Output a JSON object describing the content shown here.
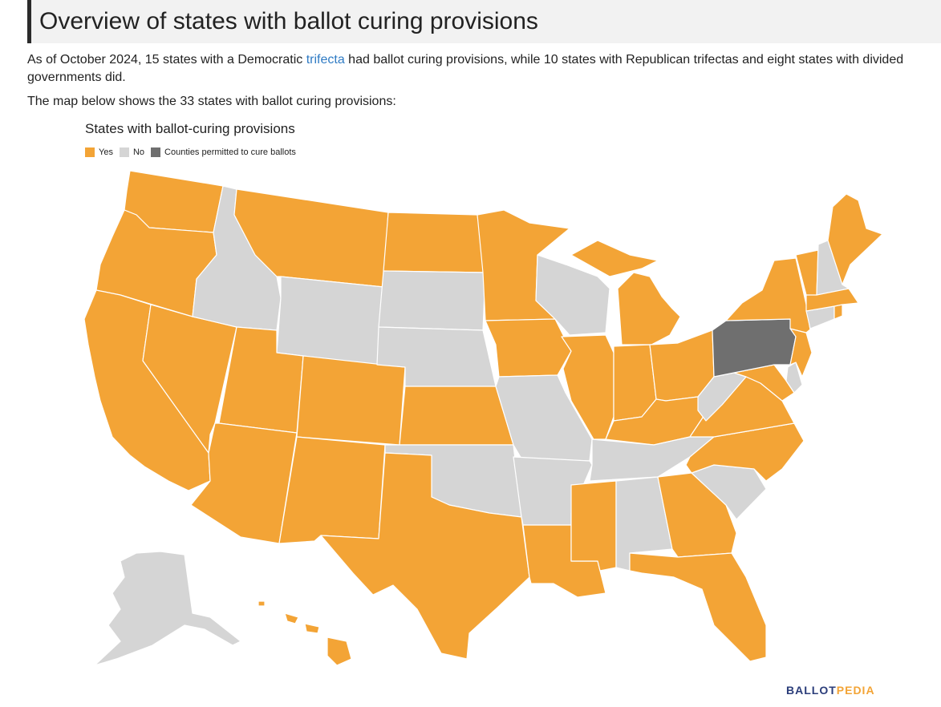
{
  "page": {
    "heading": "Overview of states with ballot curing provisions",
    "intro_before_link": "As of October 2024, 15 states with a Democratic ",
    "intro_link": "trifecta",
    "intro_after_link": " had ballot curing provisions, while 10 states with Republican trifectas and eight states with divided governments did.",
    "map_intro": "The map below shows the 33 states with ballot curing provisions:"
  },
  "map": {
    "title": "States with ballot-curing provisions",
    "legend": [
      {
        "key": "yes",
        "label": "Yes",
        "color": "#f3a436"
      },
      {
        "key": "no",
        "label": "No",
        "color": "#d5d5d5"
      },
      {
        "key": "counties",
        "label": "Counties permitted to cure ballots",
        "color": "#6f6f6f"
      }
    ],
    "states": {
      "yes": [
        "WA",
        "OR",
        "CA",
        "NV",
        "AZ",
        "UT",
        "MT",
        "CO",
        "NM",
        "TX",
        "ND",
        "KS",
        "MN",
        "IA",
        "LA",
        "MS",
        "IL",
        "IN",
        "MI",
        "OH",
        "KY",
        "GA",
        "FL",
        "NC",
        "VA",
        "MD",
        "NJ",
        "NY",
        "VT",
        "ME",
        "MA",
        "RI",
        "HI"
      ],
      "no": [
        "ID",
        "WY",
        "SD",
        "NE",
        "OK",
        "MO",
        "AR",
        "WI",
        "TN",
        "AL",
        "SC",
        "WV",
        "DE",
        "CT",
        "NH",
        "AK"
      ],
      "counties": [
        "PA"
      ]
    }
  },
  "brand": {
    "part1": "BALLOT",
    "part2": "PEDIA"
  }
}
